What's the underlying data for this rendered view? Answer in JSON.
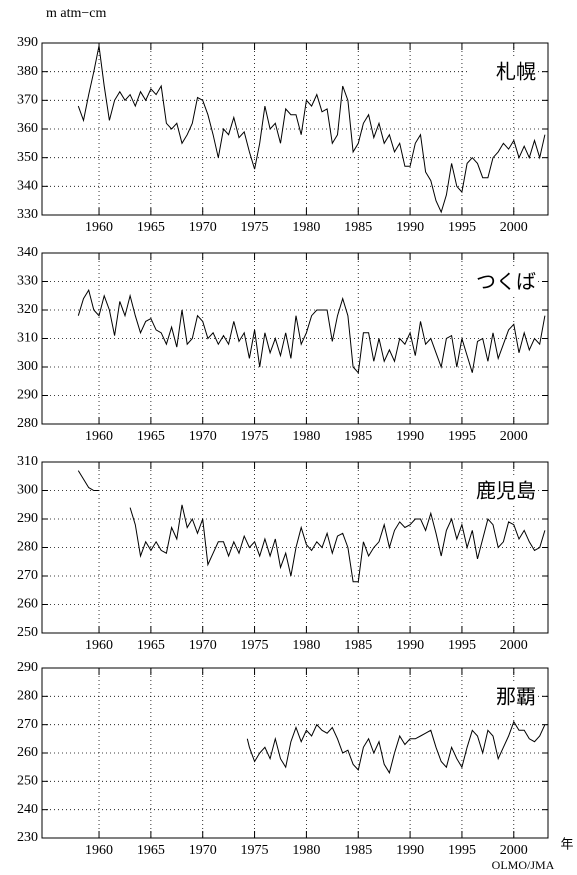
{
  "unit": "m  atm−cm",
  "x_unit": "年",
  "credit": "OLMO/JMA",
  "chart_data": [
    {
      "type": "line",
      "title": "札幌",
      "color": "#000000",
      "grid": true,
      "xlim": [
        1954.5,
        2003.3
      ],
      "ylim": [
        330,
        390
      ],
      "yticks": [
        330,
        340,
        350,
        360,
        370,
        380,
        390
      ],
      "xticks": [
        1960,
        1965,
        1970,
        1975,
        1980,
        1985,
        1990,
        1995,
        2000
      ],
      "x": [
        1958,
        1958.5,
        1959,
        1959.5,
        1960,
        1960.5,
        1961,
        1961.5,
        1962,
        1962.5,
        1963,
        1963.5,
        1964,
        1964.5,
        1965,
        1965.5,
        1966,
        1966.5,
        1967,
        1967.5,
        1968,
        1968.5,
        1969,
        1969.5,
        1970,
        1970.5,
        1971,
        1971.5,
        1972,
        1972.5,
        1973,
        1973.5,
        1974,
        1974.5,
        1975,
        1975.5,
        1976,
        1976.5,
        1977,
        1977.5,
        1978,
        1978.5,
        1979,
        1979.5,
        1980,
        1980.5,
        1981,
        1981.5,
        1982,
        1982.5,
        1983,
        1983.5,
        1984,
        1984.5,
        1985,
        1985.5,
        1986,
        1986.5,
        1987,
        1987.5,
        1988,
        1988.5,
        1989,
        1989.5,
        1990,
        1990.5,
        1991,
        1991.5,
        1992,
        1992.5,
        1993,
        1993.5,
        1994,
        1994.5,
        1995,
        1995.5,
        1996,
        1996.5,
        1997,
        1997.5,
        1998,
        1998.5,
        1999,
        1999.5,
        2000,
        2000.5,
        2001,
        2001.5,
        2002,
        2002.5,
        2003
      ],
      "values": [
        368,
        363,
        372,
        380,
        389,
        375,
        363,
        370,
        373,
        370,
        372,
        368,
        373,
        370,
        374,
        372,
        375,
        362,
        360,
        362,
        355,
        358,
        362,
        371,
        370,
        365,
        358,
        350,
        360,
        358,
        364,
        357,
        359,
        352,
        346,
        355,
        368,
        360,
        362,
        355,
        367,
        365,
        365,
        358,
        370,
        368,
        372,
        366,
        367,
        355,
        358,
        375,
        370,
        352,
        355,
        362,
        365,
        357,
        362,
        355,
        358,
        352,
        355,
        347,
        347,
        355,
        358,
        345,
        342,
        335,
        331,
        337,
        348,
        340,
        338,
        348,
        350,
        348,
        343,
        343,
        350,
        352,
        355,
        353,
        356,
        350,
        354,
        350,
        356,
        350,
        358
      ]
    },
    {
      "type": "line",
      "title": "つくば",
      "color": "#000000",
      "grid": true,
      "xlim": [
        1954.5,
        2003.3
      ],
      "ylim": [
        280,
        340
      ],
      "yticks": [
        280,
        290,
        300,
        310,
        320,
        330,
        340
      ],
      "xticks": [
        1960,
        1965,
        1970,
        1975,
        1980,
        1985,
        1990,
        1995,
        2000
      ],
      "x": [
        1958,
        1958.5,
        1959,
        1959.5,
        1960,
        1960.5,
        1961,
        1961.5,
        1962,
        1962.5,
        1963,
        1963.5,
        1964,
        1964.5,
        1965,
        1965.5,
        1966,
        1966.5,
        1967,
        1967.5,
        1968,
        1968.5,
        1969,
        1969.5,
        1970,
        1970.5,
        1971,
        1971.5,
        1972,
        1972.5,
        1973,
        1973.5,
        1974,
        1974.5,
        1975,
        1975.5,
        1976,
        1976.5,
        1977,
        1977.5,
        1978,
        1978.5,
        1979,
        1979.5,
        1980,
        1980.5,
        1981,
        1981.5,
        1982,
        1982.5,
        1983,
        1983.5,
        1984,
        1984.5,
        1985,
        1985.5,
        1986,
        1986.5,
        1987,
        1987.5,
        1988,
        1988.5,
        1989,
        1989.5,
        1990,
        1990.5,
        1991,
        1991.5,
        1992,
        1992.5,
        1993,
        1993.5,
        1994,
        1994.5,
        1995,
        1995.5,
        1996,
        1996.5,
        1997,
        1997.5,
        1998,
        1998.5,
        1999,
        1999.5,
        2000,
        2000.5,
        2001,
        2001.5,
        2002,
        2002.5,
        2003
      ],
      "values": [
        318,
        324,
        327,
        320,
        318,
        325,
        320,
        311,
        323,
        318,
        325,
        318,
        312,
        316,
        317,
        313,
        312,
        308,
        314,
        307,
        320,
        308,
        310,
        318,
        316,
        310,
        312,
        308,
        311,
        308,
        316,
        309,
        312,
        303,
        313,
        300,
        312,
        305,
        310,
        304,
        312,
        303,
        318,
        308,
        312,
        318,
        320,
        320,
        320,
        309,
        318,
        324,
        318,
        300,
        298,
        312,
        312,
        302,
        310,
        302,
        306,
        302,
        310,
        308,
        312,
        304,
        316,
        308,
        310,
        305,
        300,
        310,
        311,
        300,
        310,
        304,
        298,
        309,
        310,
        302,
        312,
        303,
        308,
        313,
        315,
        305,
        312,
        306,
        310,
        308,
        318
      ]
    },
    {
      "type": "line",
      "title": "鹿児島",
      "color": "#000000",
      "grid": true,
      "xlim": [
        1954.5,
        2003.3
      ],
      "ylim": [
        250,
        310
      ],
      "yticks": [
        250,
        260,
        270,
        280,
        290,
        300,
        310
      ],
      "xticks": [
        1960,
        1965,
        1970,
        1975,
        1980,
        1985,
        1990,
        1995,
        2000
      ],
      "x": [
        1958,
        1958.5,
        1959,
        1959.5,
        1960,
        1961,
        1963,
        1963.5,
        1964,
        1964.5,
        1965,
        1965.5,
        1966,
        1966.5,
        1967,
        1967.5,
        1968,
        1968.5,
        1969,
        1969.5,
        1970,
        1970.5,
        1971,
        1971.5,
        1972,
        1972.5,
        1973,
        1973.5,
        1974,
        1974.5,
        1975,
        1975.5,
        1976,
        1976.5,
        1977,
        1977.5,
        1978,
        1978.5,
        1979,
        1979.5,
        1980,
        1980.5,
        1981,
        1981.5,
        1982,
        1982.5,
        1983,
        1983.5,
        1984,
        1984.5,
        1985,
        1985.5,
        1986,
        1986.5,
        1987,
        1987.5,
        1988,
        1988.5,
        1989,
        1989.5,
        1990,
        1990.5,
        1991,
        1991.5,
        1992,
        1992.5,
        1993,
        1993.5,
        1994,
        1994.5,
        1995,
        1995.5,
        1996,
        1996.5,
        1997,
        1997.5,
        1998,
        1998.5,
        1999,
        1999.5,
        2000,
        2000.5,
        2001,
        2001.5,
        2002,
        2002.5,
        2003
      ],
      "values": [
        307,
        304,
        301,
        300,
        300,
        null,
        294,
        288,
        277,
        282,
        279,
        282,
        279,
        278,
        287,
        283,
        295,
        287,
        290,
        285,
        290,
        274,
        278,
        282,
        282,
        277,
        282,
        278,
        284,
        280,
        282,
        277,
        283,
        277,
        283,
        273,
        278,
        270,
        280,
        287,
        281,
        279,
        282,
        280,
        285,
        278,
        284,
        285,
        280,
        268,
        268,
        282,
        277,
        280,
        282,
        288,
        280,
        286,
        289,
        287,
        288,
        290,
        290,
        286,
        292,
        285,
        277,
        286,
        290,
        283,
        288,
        280,
        286,
        276,
        283,
        290,
        288,
        280,
        282,
        289,
        288,
        283,
        286,
        282,
        279,
        280,
        286
      ]
    },
    {
      "type": "line",
      "title": "那覇",
      "color": "#000000",
      "grid": true,
      "xlim": [
        1954.5,
        2003.3
      ],
      "ylim": [
        230,
        290
      ],
      "yticks": [
        230,
        240,
        250,
        260,
        270,
        280,
        290
      ],
      "xticks": [
        1960,
        1965,
        1970,
        1975,
        1980,
        1985,
        1990,
        1995,
        2000
      ],
      "x": [
        1974.3,
        1974.5,
        1975,
        1975.5,
        1976,
        1976.5,
        1977,
        1977.5,
        1978,
        1978.5,
        1979,
        1979.5,
        1980,
        1980.5,
        1981,
        1981.5,
        1982,
        1982.5,
        1983,
        1983.5,
        1984,
        1984.5,
        1985,
        1985.5,
        1986,
        1986.5,
        1987,
        1987.5,
        1988,
        1988.5,
        1989,
        1989.5,
        1990,
        1990.5,
        1991,
        1991.5,
        1992,
        1992.5,
        1993,
        1993.5,
        1994,
        1994.5,
        1995,
        1995.5,
        1996,
        1996.5,
        1997,
        1997.5,
        1998,
        1998.5,
        1999,
        1999.5,
        2000,
        2000.5,
        2001,
        2001.5,
        2002,
        2002.5,
        2003
      ],
      "values": [
        265,
        262,
        257,
        260,
        262,
        258,
        265,
        258,
        255,
        264,
        269,
        264,
        268,
        266,
        270,
        268,
        267,
        269,
        265,
        260,
        261,
        256,
        254,
        262,
        265,
        260,
        264,
        256,
        253,
        260,
        266,
        263,
        265,
        265,
        266,
        267,
        268,
        262,
        257,
        255,
        262,
        258,
        255,
        262,
        268,
        266,
        260,
        268,
        266,
        258,
        262,
        266,
        271,
        268,
        268,
        265,
        264,
        266,
        270
      ]
    }
  ]
}
